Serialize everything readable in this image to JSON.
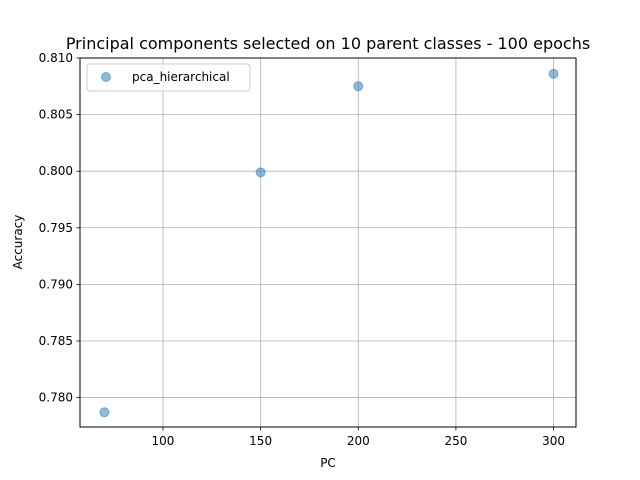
{
  "chart_data": {
    "type": "scatter",
    "title": "Principal components selected on 10 parent classes - 100 epochs",
    "xlabel": "PC",
    "ylabel": "Accuracy",
    "xlim": [
      57.5,
      311.5
    ],
    "ylim": [
      0.7774,
      0.81
    ],
    "xticks": [
      100,
      150,
      200,
      250,
      300
    ],
    "xtick_labels": [
      "100",
      "150",
      "200",
      "250",
      "300"
    ],
    "yticks": [
      0.78,
      0.785,
      0.79,
      0.795,
      0.8,
      0.805,
      0.81
    ],
    "ytick_labels": [
      "0.780",
      "0.785",
      "0.790",
      "0.795",
      "0.800",
      "0.805",
      "0.810"
    ],
    "grid": true,
    "legend_position": "upper-left",
    "series": [
      {
        "name": "pca_hierarchical",
        "color": "#1f77b4",
        "points": [
          {
            "x": 70,
            "y": 0.7787
          },
          {
            "x": 150,
            "y": 0.7999
          },
          {
            "x": 200,
            "y": 0.8075
          },
          {
            "x": 300,
            "y": 0.8086
          }
        ]
      }
    ]
  }
}
